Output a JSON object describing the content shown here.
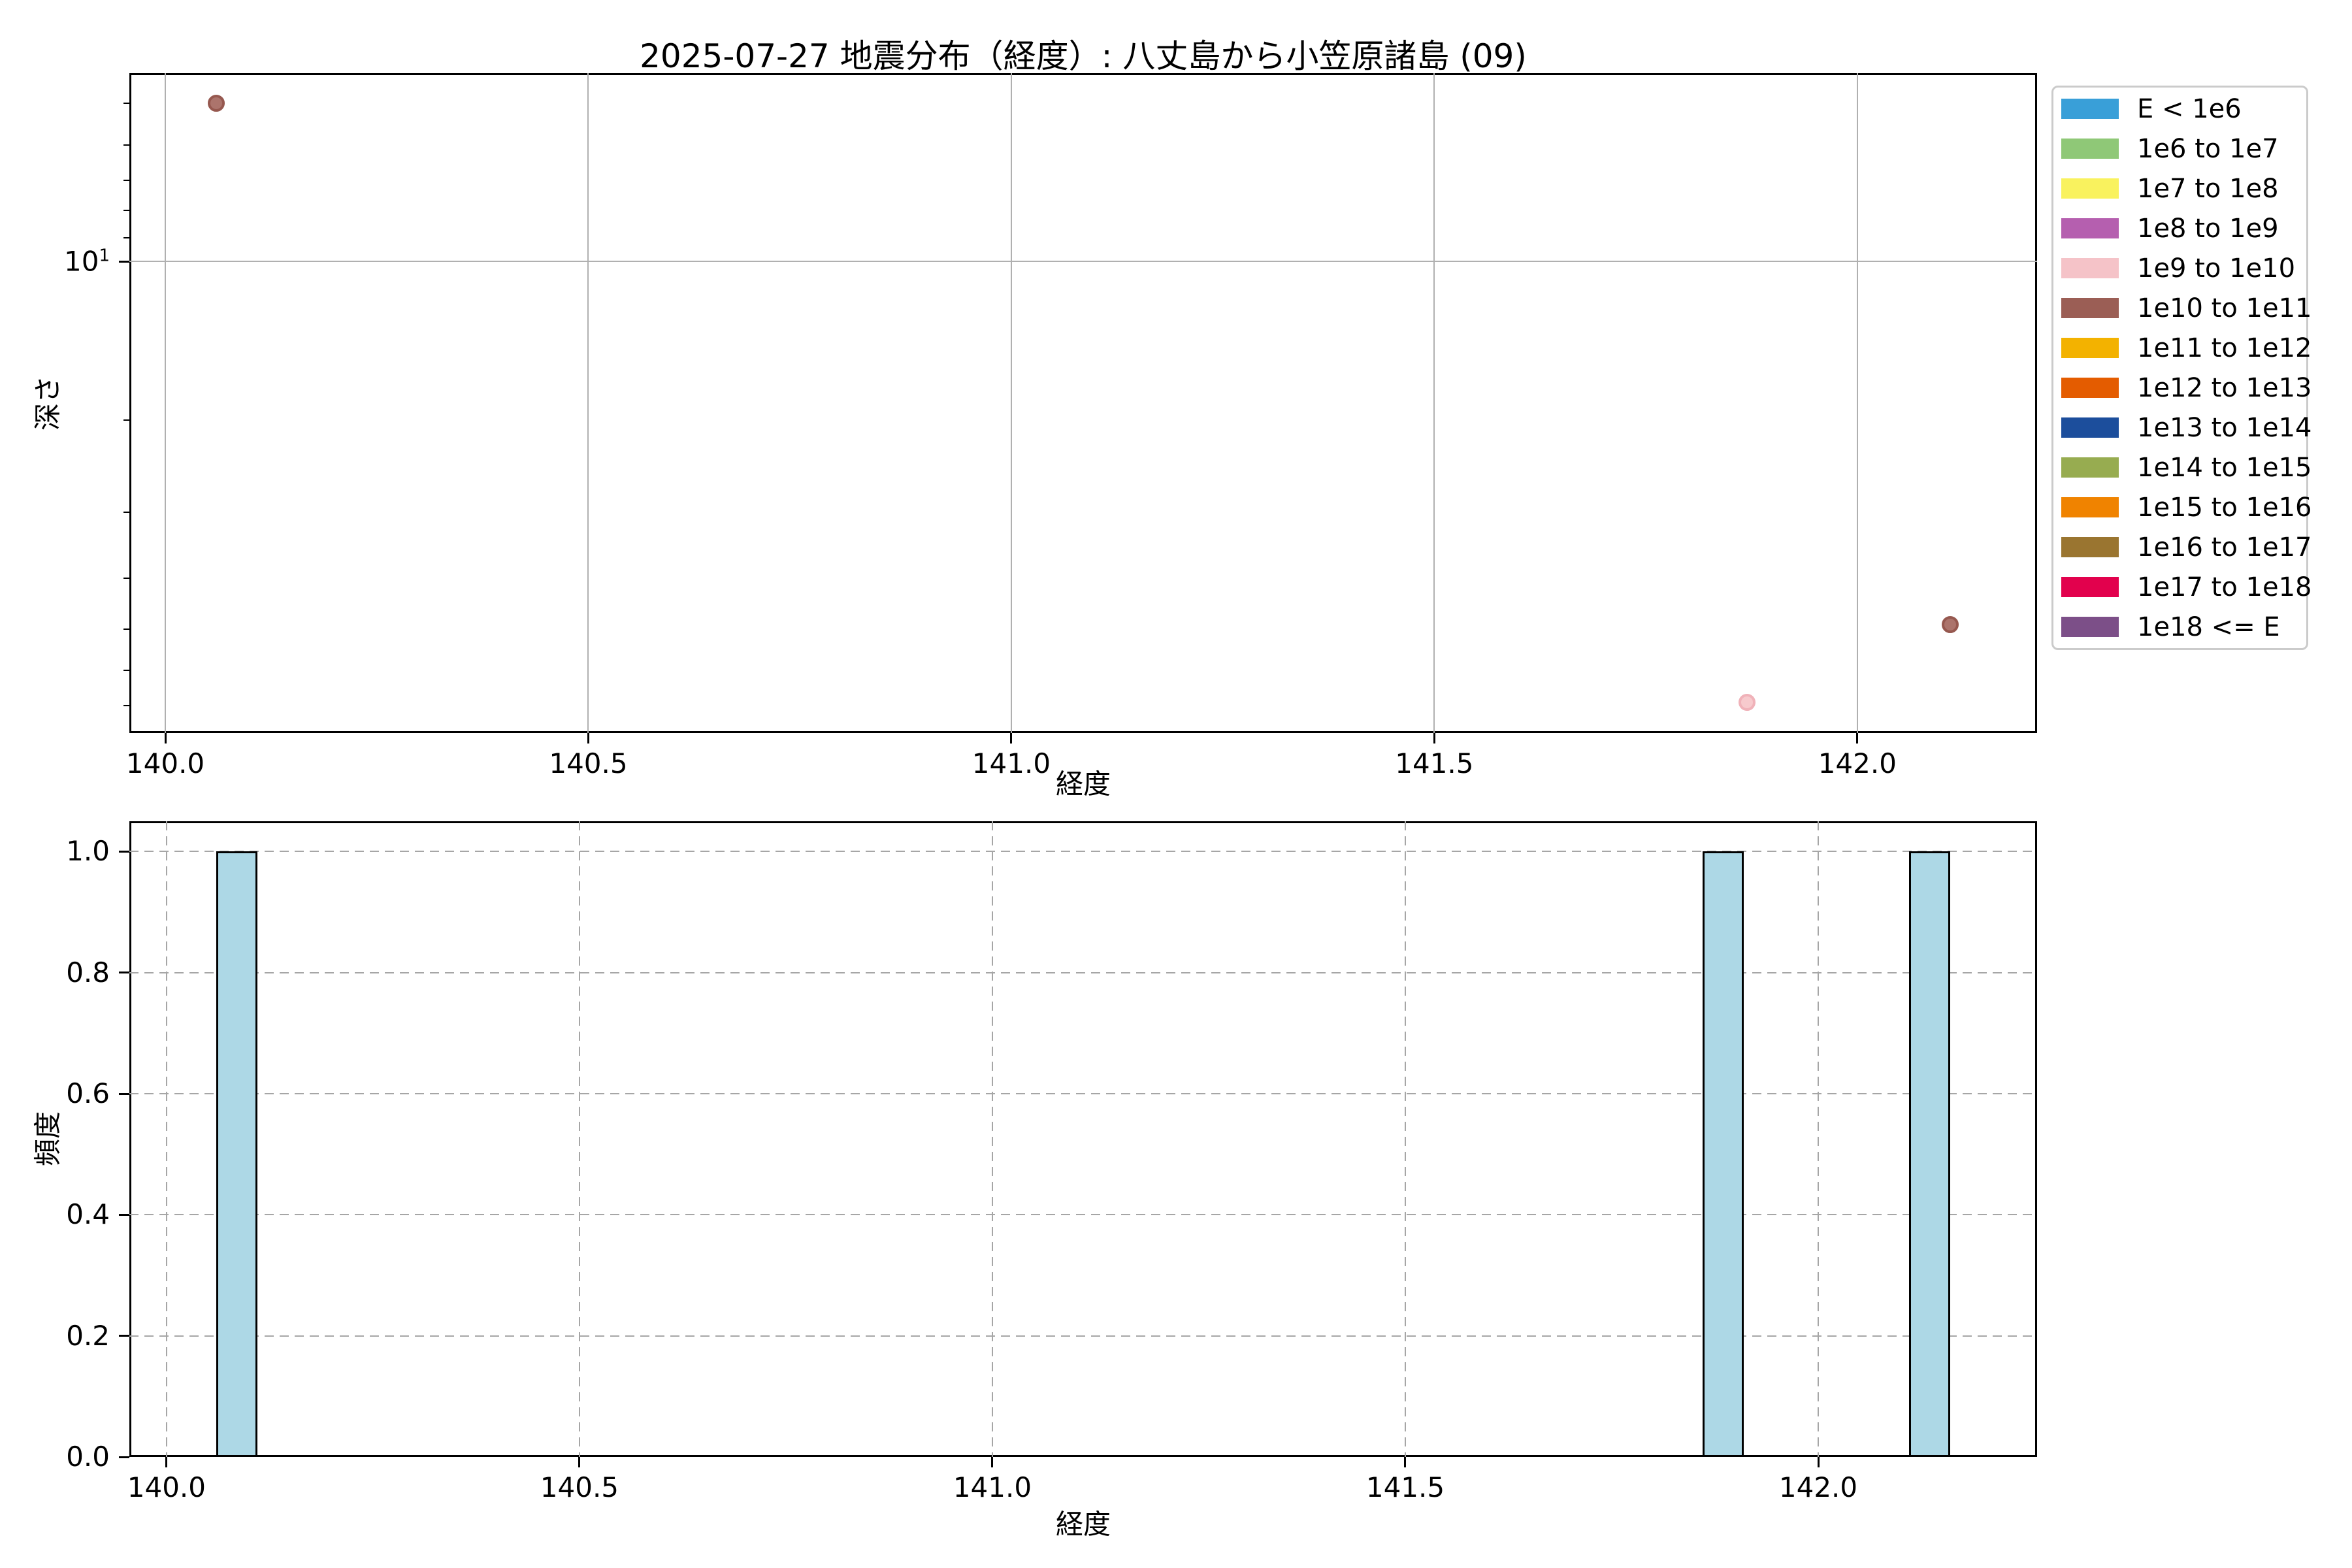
{
  "title": "2025-07-27 地震分布（経度）: 八丈島から小笠原諸島 (09)",
  "colors": {
    "background": "#ffffff",
    "spine": "#000000",
    "grid_solid": "#b0b0b0",
    "grid_dashed": "#a6a6a6",
    "legend_border": "#cbcbcb"
  },
  "chart_data": [
    {
      "type": "scatter",
      "title": "2025-07-27 地震分布（経度）: 八丈島から小笠原諸島 (09)",
      "xlabel": "経度",
      "ylabel": "深さ",
      "x_ticks": [
        {
          "value": 140.0,
          "label": "140.0"
        },
        {
          "value": 140.5,
          "label": "140.5"
        },
        {
          "value": 141.0,
          "label": "141.0"
        },
        {
          "value": 141.5,
          "label": "141.5"
        },
        {
          "value": 142.0,
          "label": "142.0"
        }
      ],
      "y_scale": "log",
      "y_inverted": true,
      "y_major_tick": {
        "value": 10,
        "label_base": "10",
        "label_exp": "1"
      },
      "y_minor_ticks": [
        5,
        6,
        7,
        8,
        9,
        20,
        30,
        40,
        50,
        60,
        70
      ],
      "xlim": [
        139.9575,
        142.2125
      ],
      "ylim": {
        "top": 4.38,
        "bottom": 78.9
      },
      "grid_style": "solid",
      "points": [
        {
          "longitude": 140.06,
          "depth_km": 5.0,
          "energy_bin": "1e10 to 1e11",
          "fill": "#AC746C",
          "edge": "#96584F"
        },
        {
          "longitude": 141.87,
          "depth_km": 69.0,
          "energy_bin": "1e9 to 1e10",
          "fill": "#F7CACD",
          "edge": "#F0B2B9"
        },
        {
          "longitude": 142.11,
          "depth_km": 49.0,
          "energy_bin": "1e10 to 1e11",
          "fill": "#AC746C",
          "edge": "#96584F"
        }
      ]
    },
    {
      "type": "bar",
      "xlabel": "経度",
      "ylabel": "頻度",
      "x_ticks": [
        {
          "value": 140.0,
          "label": "140.0"
        },
        {
          "value": 140.5,
          "label": "140.5"
        },
        {
          "value": 141.0,
          "label": "141.0"
        },
        {
          "value": 141.5,
          "label": "141.5"
        },
        {
          "value": 142.0,
          "label": "142.0"
        }
      ],
      "y_ticks": [
        {
          "value": 0.0,
          "label": "0.0"
        },
        {
          "value": 0.2,
          "label": "0.2"
        },
        {
          "value": 0.4,
          "label": "0.4"
        },
        {
          "value": 0.6,
          "label": "0.6"
        },
        {
          "value": 0.8,
          "label": "0.8"
        },
        {
          "value": 1.0,
          "label": "1.0"
        }
      ],
      "xlim": [
        139.955,
        142.265
      ],
      "ylim": [
        0,
        1.05
      ],
      "grid_style": "dashed",
      "bin_width": 0.05,
      "bar_fill": "#ADD8E6",
      "bar_edge": "#000000",
      "bars": [
        {
          "x0": 140.06,
          "x1": 140.11,
          "count": 1
        },
        {
          "x0": 141.86,
          "x1": 141.91,
          "count": 1
        },
        {
          "x0": 142.11,
          "x1": 142.16,
          "count": 1
        }
      ]
    }
  ],
  "legend": {
    "entries": [
      {
        "label": "E < 1e6",
        "color": "#399FD8"
      },
      {
        "label": "1e6 to 1e7",
        "color": "#8FC877"
      },
      {
        "label": "1e7 to 1e8",
        "color": "#F9F25E"
      },
      {
        "label": "1e8 to 1e9",
        "color": "#B55FAF"
      },
      {
        "label": "1e9 to 1e10",
        "color": "#F5C3C8"
      },
      {
        "label": "1e10 to 1e11",
        "color": "#9B5E55"
      },
      {
        "label": "1e11 to 1e12",
        "color": "#F3B200"
      },
      {
        "label": "1e12 to 1e13",
        "color": "#E45C00"
      },
      {
        "label": "1e13 to 1e14",
        "color": "#1C4E9C"
      },
      {
        "label": "1e14 to 1e15",
        "color": "#97AC50"
      },
      {
        "label": "1e15 to 1e16",
        "color": "#F08300"
      },
      {
        "label": "1e16 to 1e17",
        "color": "#9A7530"
      },
      {
        "label": "1e17 to 1e18",
        "color": "#E2014D"
      },
      {
        "label": "1e18 <= E",
        "color": "#7C4F88"
      }
    ]
  }
}
